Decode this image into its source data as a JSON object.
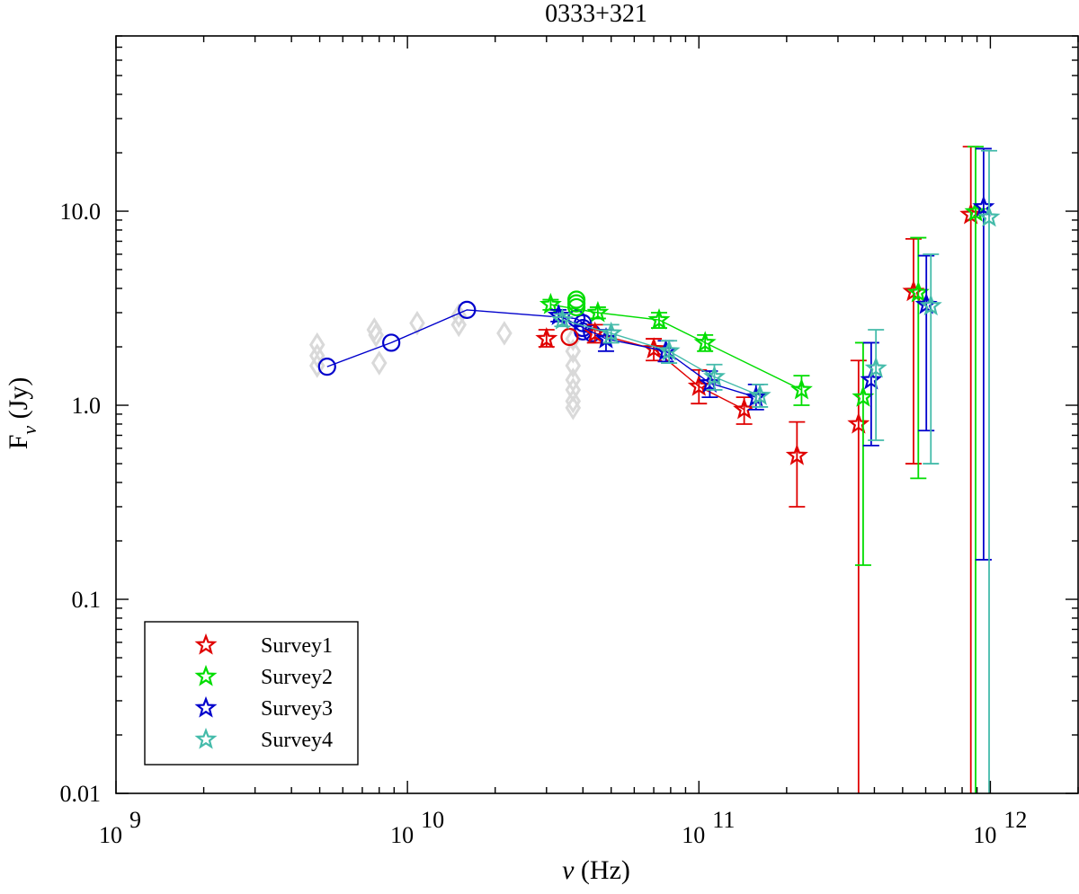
{
  "chart_data": {
    "type": "scatter",
    "title": "0333+321",
    "xlabel": "ν (Hz)",
    "ylabel": "F_ν (Jy)",
    "xscale": "log",
    "yscale": "log",
    "xlim": [
      1000000000,
      2000000000000
    ],
    "ylim": [
      0.01,
      80
    ],
    "grid": false,
    "legend_position": "bottom-left",
    "x_ticks": [
      {
        "value": 1000000000,
        "base": "10",
        "exp": "9"
      },
      {
        "value": 10000000000,
        "base": "10",
        "exp": "10"
      },
      {
        "value": 100000000000,
        "base": "10",
        "exp": "11"
      },
      {
        "value": 1000000000000,
        "base": "10",
        "exp": "12"
      }
    ],
    "y_ticks": [
      {
        "value": 0.01,
        "label": "0.01"
      },
      {
        "value": 0.1,
        "label": "0.1"
      },
      {
        "value": 1,
        "label": "1.0"
      },
      {
        "value": 10,
        "label": "10.0"
      }
    ],
    "background_points": {
      "color": "#d9d9d9",
      "marker": "diamond",
      "points": [
        [
          4900000000,
          2.05
        ],
        [
          4900000000,
          1.8
        ],
        [
          4900000000,
          1.6
        ],
        [
          7700000000,
          2.45
        ],
        [
          7800000000,
          2.3
        ],
        [
          8000000000,
          1.65
        ],
        [
          10800000000,
          2.65
        ],
        [
          15000000000,
          2.9
        ],
        [
          15000000000,
          2.6
        ],
        [
          21500000000,
          2.35
        ],
        [
          37000000000,
          2.2
        ],
        [
          37000000000,
          1.9
        ],
        [
          37000000000,
          1.6
        ],
        [
          37000000000,
          1.35
        ],
        [
          37000000000,
          1.2
        ],
        [
          37000000000,
          1.05
        ],
        [
          37000000000,
          0.97
        ]
      ]
    },
    "circle_series": [
      {
        "color": "#0000cc",
        "connected": true,
        "points": [
          {
            "x": 5300000000,
            "y": 1.58
          },
          {
            "x": 8800000000,
            "y": 2.1
          },
          {
            "x": 16000000000,
            "y": 3.1
          },
          {
            "x": 38000000000,
            "y": 2.8
          },
          {
            "x": 40000000000,
            "y": 2.65
          },
          {
            "x": 40000000000,
            "y": 2.5
          },
          {
            "x": 40000000000,
            "y": 2.4
          },
          {
            "x": 43000000000,
            "y": 2.35
          }
        ]
      },
      {
        "color": "#00dd00",
        "connected": false,
        "points": [
          {
            "x": 38000000000,
            "y": 3.5
          },
          {
            "x": 38000000000,
            "y": 3.35
          },
          {
            "x": 38000000000,
            "y": 3.2
          }
        ]
      },
      {
        "color": "#dd0000",
        "connected": false,
        "points": [
          {
            "x": 36000000000,
            "y": 2.25
          }
        ]
      }
    ],
    "series": [
      {
        "name": "Survey1",
        "color": "#e00000",
        "marker": "star",
        "points": [
          {
            "x": 30000000000,
            "y": 2.2,
            "lo": 2.0,
            "hi": 2.45,
            "connected": false
          },
          {
            "x": 44000000000,
            "y": 2.35,
            "lo": 2.1,
            "hi": 2.6,
            "connected": true
          },
          {
            "x": 70000000000,
            "y": 1.95,
            "lo": 1.7,
            "hi": 2.2,
            "connected": true
          },
          {
            "x": 100000000000,
            "y": 1.25,
            "lo": 1.02,
            "hi": 1.52,
            "connected": true
          },
          {
            "x": 143000000000,
            "y": 0.95,
            "lo": 0.8,
            "hi": 1.1,
            "connected": true
          },
          {
            "x": 217000000000,
            "y": 0.55,
            "lo": 0.3,
            "hi": 0.82,
            "connected": false
          },
          {
            "x": 353000000000,
            "y": 0.8,
            "lo": 0.01,
            "hi": 1.7,
            "connected": false
          },
          {
            "x": 545000000000,
            "y": 3.85,
            "lo": 0.5,
            "hi": 7.2,
            "connected": false
          },
          {
            "x": 857000000000,
            "y": 9.6,
            "lo": 0.01,
            "hi": 21.5,
            "connected": false
          }
        ]
      },
      {
        "name": "Survey2",
        "color": "#00dd00",
        "marker": "star",
        "points": [
          {
            "x": 31000000000,
            "y": 3.3,
            "lo": 3.1,
            "hi": 3.5,
            "connected": true
          },
          {
            "x": 45000000000,
            "y": 3.0,
            "lo": 2.8,
            "hi": 3.2,
            "connected": true
          },
          {
            "x": 73000000000,
            "y": 2.75,
            "lo": 2.5,
            "hi": 3.0,
            "connected": true
          },
          {
            "x": 105000000000,
            "y": 2.1,
            "lo": 1.9,
            "hi": 2.3,
            "connected": true
          },
          {
            "x": 225000000000,
            "y": 1.2,
            "lo": 1.0,
            "hi": 1.42,
            "connected": true
          },
          {
            "x": 366000000000,
            "y": 1.1,
            "lo": 0.15,
            "hi": 2.1,
            "connected": false
          },
          {
            "x": 566000000000,
            "y": 3.8,
            "lo": 0.42,
            "hi": 7.3,
            "connected": false
          },
          {
            "x": 890000000000,
            "y": 9.9,
            "lo": 0.01,
            "hi": 21.5,
            "connected": false
          }
        ]
      },
      {
        "name": "Survey3",
        "color": "#0000cc",
        "marker": "star",
        "points": [
          {
            "x": 33000000000,
            "y": 2.9,
            "lo": 2.7,
            "hi": 3.1,
            "connected": true
          },
          {
            "x": 48000000000,
            "y": 2.2,
            "lo": 1.9,
            "hi": 2.45,
            "connected": true
          },
          {
            "x": 77000000000,
            "y": 1.9,
            "lo": 1.68,
            "hi": 2.15,
            "connected": true
          },
          {
            "x": 109000000000,
            "y": 1.3,
            "lo": 1.1,
            "hi": 1.5,
            "connected": true
          },
          {
            "x": 157000000000,
            "y": 1.1,
            "lo": 0.95,
            "hi": 1.28,
            "connected": true
          },
          {
            "x": 390000000000,
            "y": 1.35,
            "lo": 0.62,
            "hi": 2.1,
            "connected": false
          },
          {
            "x": 603000000000,
            "y": 3.3,
            "lo": 0.74,
            "hi": 5.9,
            "connected": false
          },
          {
            "x": 948000000000,
            "y": 10.5,
            "lo": 0.16,
            "hi": 21.0,
            "connected": false
          }
        ]
      },
      {
        "name": "Survey4",
        "color": "#44bbaa",
        "marker": "star",
        "points": [
          {
            "x": 34000000000,
            "y": 2.75,
            "lo": 2.55,
            "hi": 2.95,
            "connected": true
          },
          {
            "x": 50000000000,
            "y": 2.35,
            "lo": 2.1,
            "hi": 2.6,
            "connected": true
          },
          {
            "x": 79000000000,
            "y": 1.9,
            "lo": 1.65,
            "hi": 2.15,
            "connected": true
          },
          {
            "x": 113000000000,
            "y": 1.4,
            "lo": 1.2,
            "hi": 1.62,
            "connected": true
          },
          {
            "x": 162000000000,
            "y": 1.12,
            "lo": 0.98,
            "hi": 1.28,
            "connected": true
          },
          {
            "x": 405000000000,
            "y": 1.55,
            "lo": 0.66,
            "hi": 2.45,
            "connected": false
          },
          {
            "x": 625000000000,
            "y": 3.25,
            "lo": 0.5,
            "hi": 6.0,
            "connected": false
          },
          {
            "x": 990000000000,
            "y": 9.3,
            "lo": 0.01,
            "hi": 20.5,
            "connected": false
          }
        ]
      }
    ]
  }
}
